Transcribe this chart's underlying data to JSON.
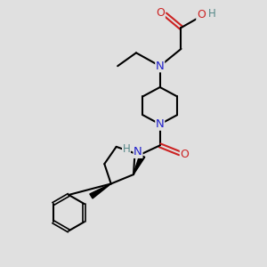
{
  "bg_color": "#e0e0e0",
  "atom_colors": {
    "C": "#000000",
    "N": "#2222cc",
    "O": "#cc2222",
    "H": "#558888"
  },
  "bond_color": "#000000",
  "bond_width": 1.5,
  "font_size": 8.5
}
